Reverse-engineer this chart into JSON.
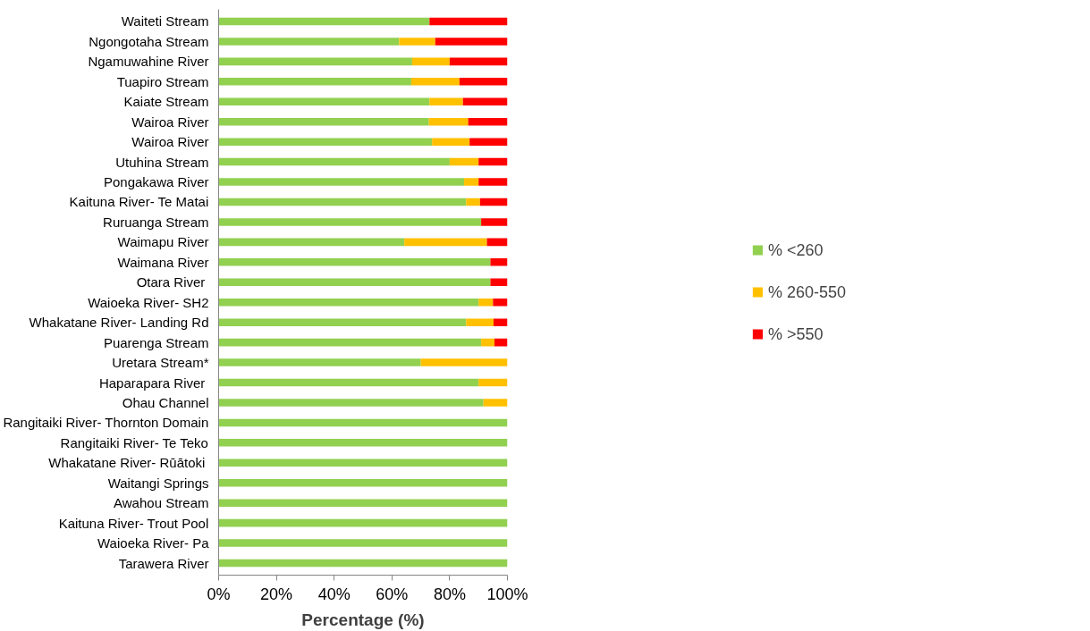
{
  "chart_data": {
    "type": "bar",
    "orientation": "horizontal",
    "stacked": true,
    "xlabel": "Percentage (%)",
    "categories": [
      "Waiteti Stream",
      "Ngongotaha Stream",
      "Ngamuwahine River",
      "Tuapiro Stream",
      "Kaiate Stream",
      "Wairoa River",
      "Wairoa River",
      "Utuhina Stream",
      "Pongakawa River",
      "Kaituna River- Te Matai",
      "Ruruanga Stream",
      "Waimapu River",
      "Waimana River",
      "Otara River ",
      "Waioeka River- SH2",
      "Whakatane River- Landing Rd",
      "Puarenga Stream",
      "Uretara Stream*",
      "Haparapara River ",
      "Ohau Channel",
      "Rangitaiki River- Thornton Domain",
      "Rangitaiki River- Te Teko",
      "Whakatane River- Rūātoki ",
      "Waitangi Springs",
      "Awahou Stream",
      "Kaituna River- Trout Pool",
      "Waioeka River- Pa",
      "Tarawera River"
    ],
    "series": [
      {
        "name": "% <260",
        "color": "#92d050",
        "values": [
          73,
          62.5,
          67,
          66.7,
          73,
          72.8,
          73.9,
          80,
          85,
          85.7,
          90.9,
          64.3,
          94.1,
          94.1,
          90,
          85.7,
          90.9,
          70,
          90,
          91.7,
          100,
          100,
          100,
          100,
          100,
          100,
          100,
          100
        ]
      },
      {
        "name": "% 260-550",
        "color": "#ffc000",
        "values": [
          0,
          12.5,
          13,
          16.7,
          11.6,
          13.6,
          13,
          10,
          5,
          4.8,
          0,
          28.6,
          0,
          0,
          5,
          9.5,
          4.6,
          30,
          10,
          8.3,
          0,
          0,
          0,
          0,
          0,
          0,
          0,
          0
        ]
      },
      {
        "name": "% >550",
        "color": "#ff0000",
        "values": [
          27,
          25,
          20,
          16.7,
          15.4,
          13.6,
          13.1,
          10,
          10,
          9.5,
          9.1,
          7.1,
          5.9,
          5.9,
          5,
          4.8,
          4.5,
          0,
          0,
          0,
          0,
          0,
          0,
          0,
          0,
          0,
          0,
          0
        ]
      }
    ],
    "xlim": [
      0,
      100
    ],
    "xticks": [
      {
        "value": 0,
        "label": "0%"
      },
      {
        "value": 20,
        "label": "20%"
      },
      {
        "value": 40,
        "label": "40%"
      },
      {
        "value": 60,
        "label": "60%"
      },
      {
        "value": 80,
        "label": "80%"
      },
      {
        "value": 100,
        "label": "100%"
      }
    ],
    "grid": false,
    "legend": "right"
  }
}
